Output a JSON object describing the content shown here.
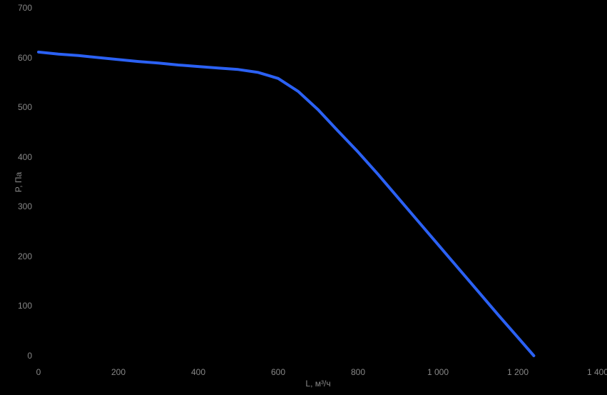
{
  "chart_data": {
    "type": "line",
    "title": "",
    "xlabel": "L, м³/ч",
    "ylabel": "P, Па",
    "xlim": [
      0,
      1400
    ],
    "ylim": [
      0,
      700
    ],
    "grid": false,
    "legend": "none",
    "background_color": "#000000",
    "text_color": "#878787",
    "line_color": "#2b61f4",
    "x_tick_values": [
      0,
      200,
      400,
      600,
      800,
      1000,
      1200,
      1400
    ],
    "x_tick_labels": [
      "0",
      "200",
      "400",
      "600",
      "800",
      "1 000",
      "1 200",
      "1 400"
    ],
    "y_tick_values": [
      0,
      100,
      200,
      300,
      400,
      500,
      600,
      700
    ],
    "y_tick_labels": [
      "0",
      "100",
      "200",
      "300",
      "400",
      "500",
      "600",
      "700"
    ],
    "series": [
      {
        "name": "fan pressure curve",
        "color": "#2b61f4",
        "x": [
          0,
          50,
          100,
          150,
          200,
          250,
          300,
          350,
          400,
          450,
          500,
          550,
          600,
          650,
          700,
          750,
          800,
          850,
          900,
          950,
          1000,
          1050,
          1100,
          1150,
          1200,
          1240
        ],
        "y": [
          611,
          607,
          604,
          600,
          596,
          592,
          589,
          585,
          582,
          579,
          576,
          570,
          558,
          532,
          495,
          452,
          410,
          365,
          318,
          271,
          224,
          177,
          130,
          83,
          37,
          0
        ]
      }
    ]
  }
}
